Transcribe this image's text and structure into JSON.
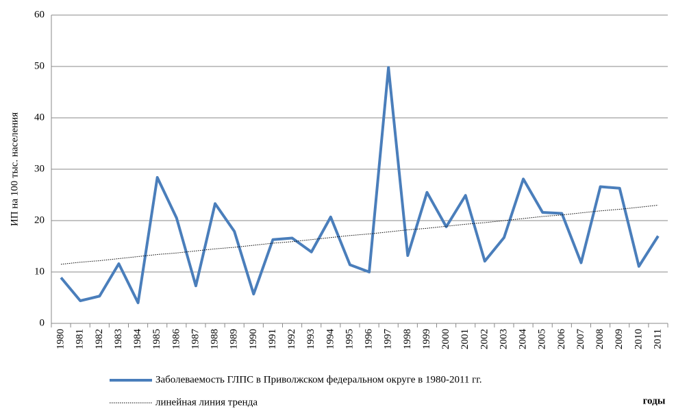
{
  "chart_data": {
    "type": "line",
    "y_label": "ИП на 100 тыс. населения",
    "x_label": "годы",
    "categories": [
      "1980",
      "1981",
      "1982",
      "1983",
      "1984",
      "1985",
      "1986",
      "1987",
      "1988",
      "1989",
      "1990",
      "1991",
      "1992",
      "1993",
      "1994",
      "1995",
      "1996",
      "1997",
      "1998",
      "1999",
      "2000",
      "2001",
      "2002",
      "2003",
      "2004",
      "2005",
      "2006",
      "2007",
      "2008",
      "2009",
      "2010",
      "2011"
    ],
    "series": [
      {
        "name": "Заболеваемость ГЛПС в Приволжском федеральном округе в 1980-2011 гг.",
        "color": "#4a7ebb",
        "style": "solid",
        "values": [
          8.9,
          4.4,
          5.3,
          11.6,
          4.0,
          28.4,
          20.5,
          7.3,
          23.3,
          17.9,
          5.7,
          16.3,
          16.6,
          13.9,
          20.7,
          11.4,
          10.0,
          49.8,
          13.2,
          25.5,
          18.8,
          24.9,
          12.1,
          16.7,
          28.1,
          21.6,
          21.4,
          11.8,
          26.6,
          26.3,
          11.1,
          17.0
        ]
      },
      {
        "name": "линейная линия тренда",
        "color": "#000000",
        "style": "dotted",
        "values": [
          11.5,
          11.9,
          12.2,
          12.6,
          13.0,
          13.4,
          13.7,
          14.1,
          14.5,
          14.8,
          15.2,
          15.6,
          15.9,
          16.3,
          16.7,
          17.1,
          17.4,
          17.8,
          18.2,
          18.5,
          18.9,
          19.3,
          19.6,
          20.0,
          20.4,
          20.8,
          21.1,
          21.5,
          21.9,
          22.2,
          22.6,
          23.0
        ]
      }
    ],
    "ylim": [
      0,
      60
    ],
    "yticks": [
      0,
      10,
      20,
      30,
      40,
      50,
      60
    ],
    "grid": true,
    "legend": "bottom"
  }
}
